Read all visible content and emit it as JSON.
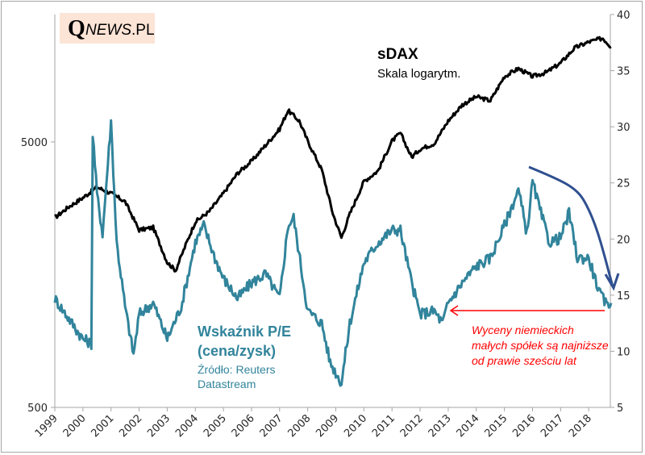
{
  "chart_data": {
    "type": "line",
    "title": "sDAX",
    "subtitle": "Skala logarytm.",
    "xlabel": "",
    "x_ticks": [
      "1999",
      "2000",
      "2001",
      "2002",
      "2003",
      "2004",
      "2005",
      "2006",
      "2007",
      "2008",
      "2009",
      "2010",
      "2011",
      "2012",
      "2013",
      "2014",
      "2015",
      "2016",
      "2017",
      "2018"
    ],
    "xlim": [
      1999,
      2018.8
    ],
    "left_axis": {
      "scale": "log",
      "ticks": [
        500,
        5000
      ],
      "range": [
        500,
        15100
      ]
    },
    "right_axis": {
      "scale": "linear",
      "ticks": [
        5,
        10,
        15,
        20,
        25,
        30,
        35,
        40
      ],
      "range": [
        5,
        40
      ]
    },
    "grid": false,
    "series": [
      {
        "name": "sDAX",
        "axis": "left",
        "color": "#000000",
        "x": [
          1999.0,
          1999.5,
          2000.0,
          2000.5,
          2001.0,
          2001.5,
          2002.0,
          2002.5,
          2003.0,
          2003.3,
          2003.7,
          2004.0,
          2004.5,
          2005.0,
          2005.5,
          2006.0,
          2006.5,
          2007.0,
          2007.3,
          2007.7,
          2008.0,
          2008.5,
          2008.9,
          2009.2,
          2009.5,
          2010.0,
          2010.5,
          2011.0,
          2011.3,
          2011.7,
          2012.0,
          2012.5,
          2013.0,
          2013.5,
          2014.0,
          2014.5,
          2015.0,
          2015.5,
          2016.0,
          2016.5,
          2017.0,
          2017.5,
          2018.0,
          2018.5,
          2018.8
        ],
        "values": [
          2590,
          2850,
          3080,
          3380,
          3200,
          2980,
          2330,
          2380,
          1760,
          1640,
          2100,
          2500,
          2740,
          3200,
          3810,
          4230,
          4860,
          5590,
          6570,
          6000,
          5040,
          3930,
          2680,
          2180,
          2680,
          3550,
          3890,
          5040,
          5400,
          4380,
          4700,
          4930,
          6000,
          6900,
          7400,
          7150,
          8820,
          9450,
          8820,
          9150,
          9910,
          11300,
          11900,
          12300,
          11400
        ]
      },
      {
        "name": "Wskaźnik P/E (cena/zysk)",
        "axis": "right",
        "color": "#31849b",
        "x": [
          1999.0,
          1999.5,
          2000.0,
          2000.3,
          2000.35,
          2000.5,
          2000.7,
          2001.0,
          2001.2,
          2001.5,
          2001.8,
          2002.0,
          2002.5,
          2003.0,
          2003.5,
          2004.0,
          2004.3,
          2004.7,
          2005.0,
          2005.5,
          2006.0,
          2006.5,
          2007.0,
          2007.3,
          2007.5,
          2007.8,
          2008.0,
          2008.5,
          2008.8,
          2009.2,
          2009.5,
          2010.0,
          2010.5,
          2011.0,
          2011.3,
          2011.7,
          2012.0,
          2012.5,
          2012.8,
          2013.0,
          2013.5,
          2014.0,
          2014.5,
          2015.0,
          2015.5,
          2015.8,
          2016.0,
          2016.3,
          2016.6,
          2017.0,
          2017.3,
          2017.6,
          2018.0,
          2018.4,
          2018.6,
          2018.8
        ],
        "values": [
          14.7,
          12.9,
          11.1,
          10.7,
          29.4,
          24.0,
          20.5,
          30.5,
          19.7,
          14.0,
          9.7,
          13.3,
          14.3,
          11.1,
          14.0,
          19.7,
          21.2,
          18.3,
          16.5,
          14.7,
          16.1,
          16.9,
          14.7,
          21.2,
          21.9,
          16.9,
          13.6,
          12.5,
          9.0,
          7.2,
          12.5,
          17.9,
          19.7,
          20.8,
          20.8,
          16.1,
          13.3,
          13.6,
          12.5,
          14.3,
          16.1,
          17.6,
          18.3,
          21.2,
          24.4,
          20.5,
          25.1,
          22.3,
          19.7,
          20.1,
          22.3,
          18.3,
          18.3,
          15.1,
          14.3,
          14.3
        ]
      }
    ],
    "annotations": {
      "pe_title": "Wskaźnik P/E (cena/zysk)",
      "pe_source": "Źródło: Reuters Datastream",
      "note": "Wyceny niemieckich małych spółek są najniższe od prawie sześciu lat",
      "note_color": "#ff0000",
      "trend_arrow_color": "#2f4f8f"
    }
  },
  "logo": {
    "q": "Q",
    "news": "NEWS",
    "suffix": ".PL"
  },
  "labels": {
    "sdax_title": "sDAX",
    "sdax_sub": "Skala logarytm.",
    "pe_title_line1": "Wskaźnik P/E",
    "pe_title_line2": "(cena/zysk)",
    "pe_src_line1": "Źródło: Reuters",
    "pe_src_line2": "Datastream",
    "note": "Wyceny niemieckich małych spółek są najniższe od prawie sześciu lat"
  }
}
